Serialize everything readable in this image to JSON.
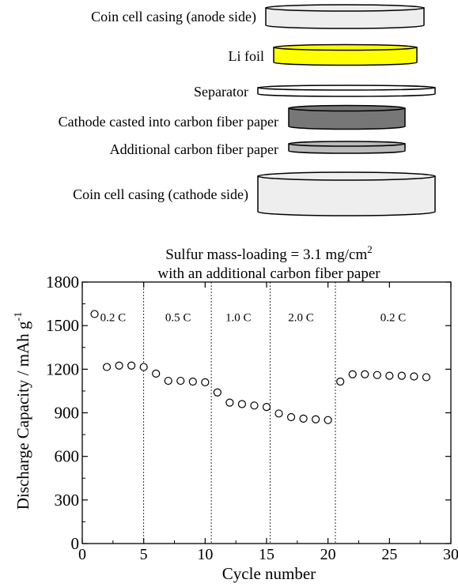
{
  "diagram": {
    "layers": [
      {
        "label": "Coin cell casing (anode side)",
        "fill": "#eeeeee"
      },
      {
        "label": "Li foil",
        "fill": "#ffff00"
      },
      {
        "label": "Separator",
        "fill": "#ffffff"
      },
      {
        "label": "Cathode casted into carbon fiber paper",
        "fill": "#777777"
      },
      {
        "label": "Additional carbon fiber paper",
        "fill": "#bbbbbb"
      },
      {
        "label": "Coin cell casing (cathode side)",
        "fill": "#eeeeee"
      }
    ]
  },
  "chart_data": {
    "type": "scatter",
    "title_line1": "Sulfur mass-loading = 3.1 mg/cm",
    "title_sup": "2",
    "title_line2": "with an additional carbon fiber paper",
    "xlabel": "Cycle number",
    "ylabel": "Discharge Capacity / mAh g",
    "ylabel_sup": "-1",
    "xlim": [
      0,
      30
    ],
    "ylim": [
      0,
      1800
    ],
    "xticks": [
      0,
      5,
      10,
      15,
      20,
      25,
      30
    ],
    "yticks": [
      0,
      300,
      600,
      900,
      1200,
      1500,
      1800
    ],
    "rate_boundaries": [
      5,
      10.5,
      15.3,
      20.6
    ],
    "rate_labels": [
      {
        "text": "0.2 C",
        "x": 2.5,
        "y": 1530
      },
      {
        "text": "0.5 C",
        "x": 7.8,
        "y": 1530
      },
      {
        "text": "1.0 C",
        "x": 12.7,
        "y": 1530
      },
      {
        "text": "2.0 C",
        "x": 17.8,
        "y": 1530
      },
      {
        "text": "0.2 C",
        "x": 25.3,
        "y": 1530
      }
    ],
    "x": [
      1,
      2,
      3,
      4,
      5,
      6,
      7,
      8,
      9,
      10,
      11,
      12,
      13,
      14,
      15,
      16,
      17,
      18,
      19,
      20,
      21,
      22,
      23,
      24,
      25,
      26,
      27,
      28
    ],
    "y": [
      1580,
      1215,
      1225,
      1225,
      1215,
      1170,
      1120,
      1120,
      1115,
      1110,
      1040,
      970,
      960,
      950,
      940,
      895,
      870,
      860,
      855,
      850,
      1115,
      1165,
      1165,
      1160,
      1155,
      1155,
      1150,
      1145
    ]
  }
}
